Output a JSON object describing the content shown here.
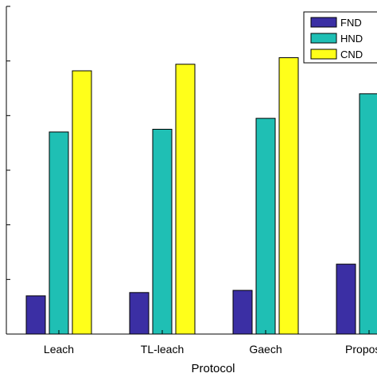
{
  "chart_data": {
    "type": "bar",
    "title": "",
    "xlabel": "Protocol",
    "ylabel": "",
    "categories": [
      "Leach",
      "TL-leach",
      "Gaech",
      "Proposed"
    ],
    "series": [
      {
        "name": "FND",
        "color": "#3b2fa4",
        "values": [
          7,
          7.6,
          8,
          12.8
        ]
      },
      {
        "name": "HND",
        "color": "#1fbfb4",
        "values": [
          37,
          37.5,
          39.5,
          44
        ]
      },
      {
        "name": "CND",
        "color": "#ffff1a",
        "values": [
          48.2,
          49.4,
          50.6,
          null
        ]
      }
    ],
    "ylim": [
      0,
      60
    ],
    "grid": false,
    "legend_position": "top-right"
  }
}
